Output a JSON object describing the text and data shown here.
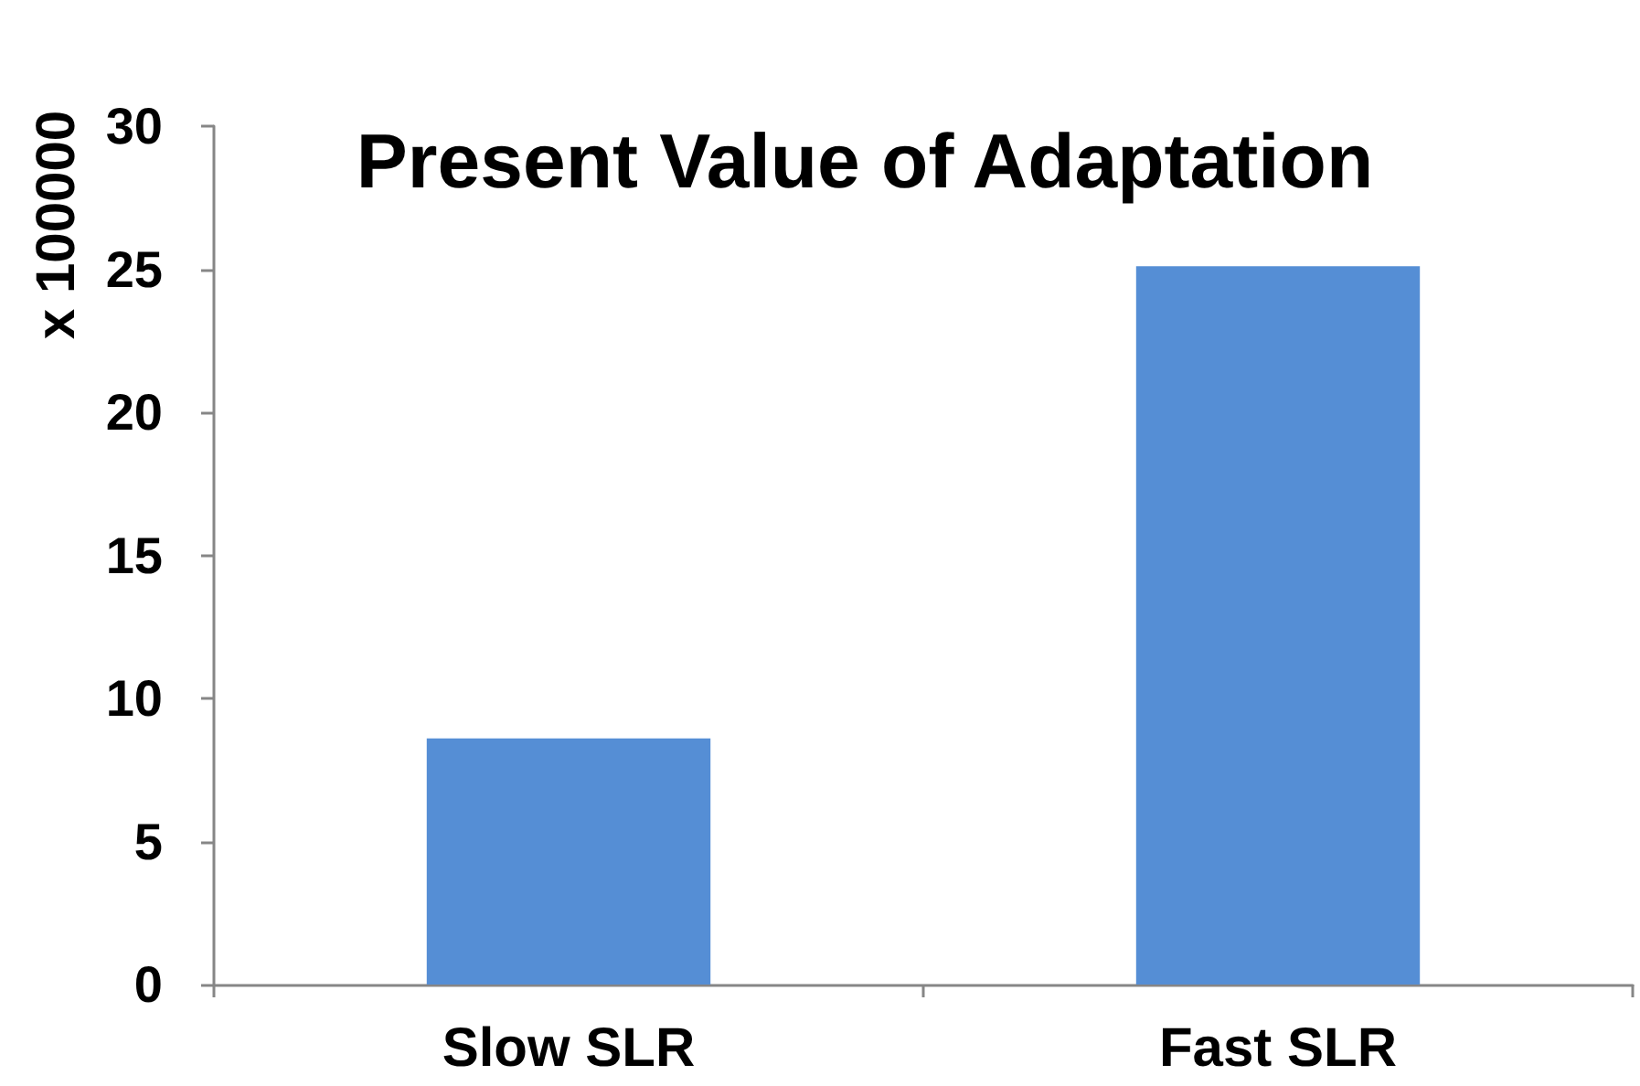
{
  "chart_data": {
    "type": "bar",
    "title": "Present Value of Adaptation",
    "ylabel": "x 100000",
    "categories": [
      "Slow SLR",
      "Fast SLR"
    ],
    "values": [
      8.6,
      25.1
    ],
    "color": "#558ed5",
    "ylim": [
      0,
      30
    ],
    "yticks": [
      0,
      5,
      10,
      15,
      20,
      25,
      30
    ]
  }
}
